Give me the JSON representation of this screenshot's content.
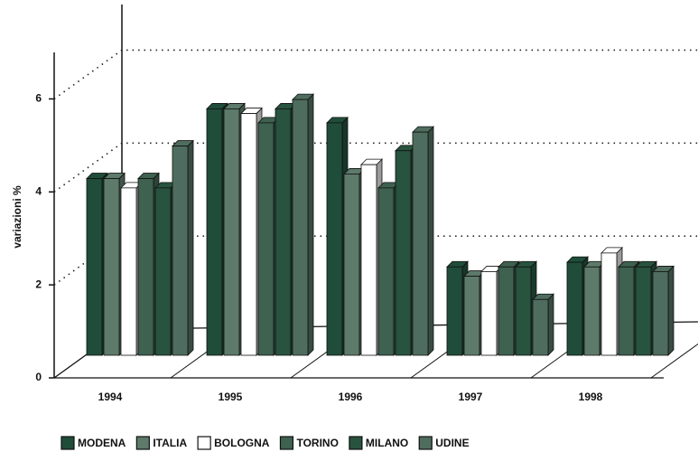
{
  "chart_data": {
    "type": "bar3d",
    "y_label": "variazioni %",
    "categories": [
      "1994",
      "1995",
      "1996",
      "1997",
      "1998"
    ],
    "series": [
      {
        "name": "MODENA",
        "color": "#1f4d3a",
        "values": [
          3.8,
          5.3,
          5.0,
          1.9,
          2.0
        ]
      },
      {
        "name": "ITALIA",
        "color": "#5d7a6a",
        "values": [
          3.8,
          5.3,
          3.9,
          1.7,
          1.9
        ]
      },
      {
        "name": "BOLOGNA",
        "color": "#ffffff",
        "values": [
          3.6,
          5.2,
          4.1,
          1.8,
          2.2
        ]
      },
      {
        "name": "TORINO",
        "color": "#3e6150",
        "values": [
          3.8,
          5.0,
          3.6,
          1.9,
          1.9
        ]
      },
      {
        "name": "MILANO",
        "color": "#27533f",
        "values": [
          3.6,
          5.3,
          4.4,
          1.9,
          1.9
        ]
      },
      {
        "name": "UDINE",
        "color": "#4f6d5e",
        "values": [
          4.5,
          5.5,
          4.8,
          1.2,
          1.8
        ]
      }
    ],
    "ylim": [
      0,
      7
    ],
    "yticks": [
      0,
      2,
      4,
      6
    ],
    "grid": true
  }
}
